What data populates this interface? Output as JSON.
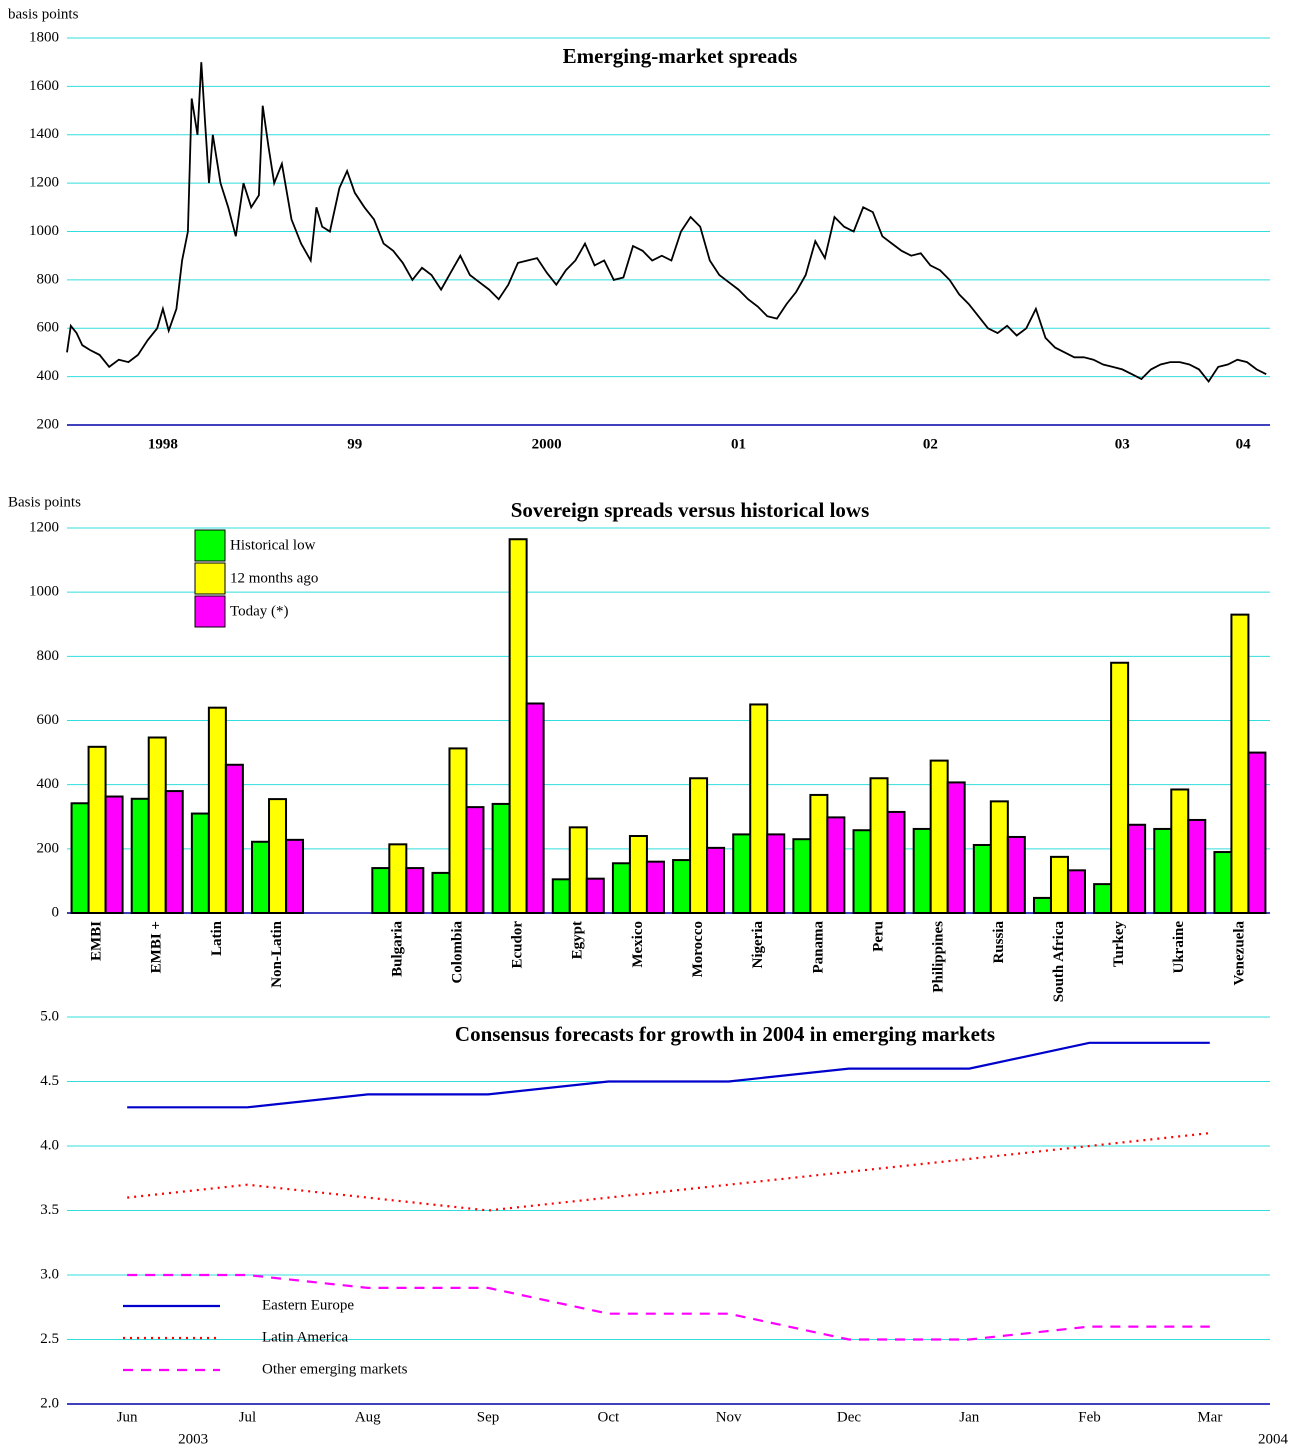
{
  "chart_data": [
    {
      "type": "line",
      "title": "Emerging-market spreads",
      "y_label": "basis points",
      "x": [
        1998,
        1998.02,
        1998.05,
        1998.08,
        1998.12,
        1998.17,
        1998.22,
        1998.27,
        1998.32,
        1998.37,
        1998.42,
        1998.47,
        1998.5,
        1998.53,
        1998.57,
        1998.6,
        1998.63,
        1998.65,
        1998.68,
        1998.7,
        1998.72,
        1998.74,
        1998.76,
        1998.8,
        1998.84,
        1998.88,
        1998.92,
        1998.96,
        1999,
        1999.02,
        1999.05,
        1999.08,
        1999.12,
        1999.17,
        1999.22,
        1999.27,
        1999.3,
        1999.33,
        1999.37,
        1999.42,
        1999.46,
        1999.5,
        1999.55,
        1999.6,
        1999.65,
        1999.7,
        1999.75,
        1999.8,
        1999.85,
        1999.9,
        1999.95,
        2000,
        2000.05,
        2000.1,
        2000.15,
        2000.2,
        2000.25,
        2000.3,
        2000.35,
        2000.4,
        2000.45,
        2000.5,
        2000.55,
        2000.6,
        2000.65,
        2000.7,
        2000.75,
        2000.8,
        2000.85,
        2000.9,
        2000.95,
        2001,
        2001.05,
        2001.1,
        2001.15,
        2001.2,
        2001.25,
        2001.3,
        2001.35,
        2001.4,
        2001.45,
        2001.5,
        2001.55,
        2001.6,
        2001.65,
        2001.7,
        2001.75,
        2001.8,
        2001.85,
        2001.9,
        2001.95,
        2002,
        2002.05,
        2002.1,
        2002.15,
        2002.2,
        2002.25,
        2002.3,
        2002.35,
        2002.4,
        2002.45,
        2002.5,
        2002.55,
        2002.6,
        2002.65,
        2002.7,
        2002.75,
        2002.8,
        2002.85,
        2002.9,
        2002.95,
        2003,
        2003.05,
        2003.1,
        2003.15,
        2003.2,
        2003.25,
        2003.3,
        2003.35,
        2003.4,
        2003.45,
        2003.5,
        2003.55,
        2003.6,
        2003.65,
        2003.7,
        2003.75,
        2003.8,
        2003.85,
        2003.9,
        2003.95,
        2004,
        2004.05,
        2004.1,
        2004.15,
        2004.2,
        2004.25
      ],
      "values": [
        500,
        610,
        580,
        530,
        510,
        490,
        440,
        470,
        460,
        490,
        550,
        600,
        680,
        590,
        680,
        880,
        1000,
        1550,
        1400,
        1700,
        1450,
        1200,
        1400,
        1200,
        1100,
        980,
        1200,
        1100,
        1150,
        1520,
        1350,
        1200,
        1280,
        1050,
        950,
        880,
        1100,
        1020,
        1000,
        1180,
        1250,
        1160,
        1100,
        1050,
        950,
        920,
        870,
        800,
        850,
        820,
        760,
        830,
        900,
        820,
        790,
        760,
        720,
        780,
        870,
        880,
        890,
        830,
        780,
        840,
        880,
        950,
        860,
        880,
        800,
        810,
        940,
        920,
        880,
        900,
        880,
        1000,
        1060,
        1020,
        880,
        820,
        790,
        760,
        720,
        690,
        650,
        640,
        700,
        750,
        820,
        960,
        890,
        1060,
        1020,
        1000,
        1100,
        1080,
        980,
        950,
        920,
        900,
        910,
        860,
        840,
        800,
        740,
        700,
        650,
        600,
        580,
        610,
        570,
        600,
        680,
        560,
        520,
        500,
        480,
        480,
        470,
        450,
        440,
        430,
        410,
        390,
        430,
        450,
        460,
        460,
        450,
        430,
        380,
        440,
        450,
        470,
        460,
        430,
        410
      ],
      "color": "#000000",
      "xlim": [
        1998,
        2004.27
      ],
      "xticks": [
        {
          "value": 1998.5,
          "label": "1998"
        },
        {
          "value": 1999.5,
          "label": "99"
        },
        {
          "value": 2000.5,
          "label": "2000"
        },
        {
          "value": 2001.5,
          "label": "01"
        },
        {
          "value": 2002.5,
          "label": "02"
        },
        {
          "value": 2003.5,
          "label": "03"
        },
        {
          "value": 2004.13,
          "label": "04"
        }
      ],
      "ylim": [
        200,
        1800
      ],
      "yticks": [
        200,
        400,
        600,
        800,
        1000,
        1200,
        1400,
        1600,
        1800
      ],
      "grid": true
    },
    {
      "type": "bar",
      "title": "Sovereign spreads versus historical lows",
      "y_label": "Basis points",
      "categories": [
        "EMBI",
        "EMBI +",
        "Latin",
        "Non-Latin",
        null,
        "Bulgaria",
        "Colombia",
        "Ecudor",
        "Egypt",
        "Mexico",
        "Morocco",
        "Nigeria",
        "Panama",
        "Peru",
        "Philippines",
        "Russia",
        "South Africa",
        "Turkey",
        "Ukraine",
        "Venezuela"
      ],
      "series": [
        {
          "name": "Historical low",
          "color": "#00ff00",
          "values": [
            342,
            356,
            310,
            222,
            null,
            140,
            125,
            340,
            105,
            155,
            165,
            245,
            230,
            258,
            262,
            212,
            47,
            90,
            262,
            190
          ]
        },
        {
          "name": "12 months ago",
          "color": "#ffff00",
          "values": [
            518,
            547,
            640,
            355,
            null,
            214,
            513,
            1165,
            267,
            240,
            420,
            650,
            368,
            420,
            475,
            348,
            175,
            780,
            385,
            930
          ]
        },
        {
          "name": "Today (*)",
          "color": "#ff00ff",
          "values": [
            363,
            380,
            462,
            228,
            null,
            140,
            330,
            653,
            107,
            160,
            203,
            245,
            298,
            315,
            407,
            237,
            133,
            275,
            290,
            500
          ]
        }
      ],
      "ylim": [
        0,
        1200
      ],
      "yticks": [
        0,
        200,
        400,
        600,
        800,
        1000,
        1200
      ],
      "grid": true,
      "legend": "upper left"
    },
    {
      "type": "line",
      "title": "Consensus forecasts for growth in 2004 in emerging markets",
      "categories": [
        "Jun",
        "Jul",
        "Aug",
        "Sep",
        "Oct",
        "Nov",
        "Dec",
        "Jan",
        "Feb",
        "Mar"
      ],
      "year_labels": [
        "2003",
        "2004"
      ],
      "series": [
        {
          "name": "Eastern Europe",
          "color": "#0000cc",
          "line_style": "solid",
          "values": [
            4.3,
            4.3,
            4.4,
            4.4,
            4.5,
            4.5,
            4.6,
            4.6,
            4.8,
            4.8
          ]
        },
        {
          "name": "Latin America",
          "color": "#ff0000",
          "line_style": "dotted",
          "values": [
            3.6,
            3.7,
            3.6,
            3.5,
            3.6,
            3.7,
            3.8,
            3.9,
            4.0,
            4.1
          ]
        },
        {
          "name": "Other emerging markets",
          "color": "#ff00ff",
          "line_style": "dashed",
          "values": [
            3.0,
            3.0,
            2.9,
            2.9,
            2.7,
            2.7,
            2.5,
            2.5,
            2.6,
            2.6
          ]
        }
      ],
      "ylim": [
        2.0,
        5.0
      ],
      "yticks": [
        {
          "value": 2,
          "label": "2.0"
        },
        {
          "value": 2.5,
          "label": "2.5"
        },
        {
          "value": 3,
          "label": "3.0"
        },
        {
          "value": 3.5,
          "label": "3.5"
        },
        {
          "value": 4,
          "label": "4.0"
        },
        {
          "value": 4.5,
          "label": "4.5"
        },
        {
          "value": 5,
          "label": "5.0"
        }
      ],
      "grid": true,
      "legend": "lower left"
    }
  ]
}
